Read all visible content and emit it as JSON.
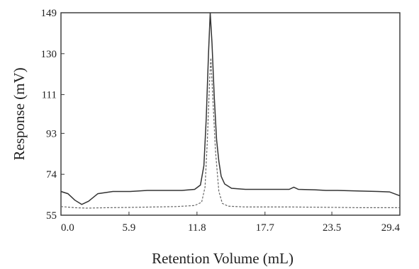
{
  "chart_data": {
    "type": "line",
    "title": "",
    "xlabel": "Retention Volume (mL)",
    "ylabel": "Response (mV)",
    "xlim": [
      0.0,
      29.4
    ],
    "ylim": [
      55,
      149
    ],
    "x_ticks": [
      "0.0",
      "5.9",
      "11.8",
      "17.7",
      "23.5",
      "29.4"
    ],
    "y_ticks": [
      "55",
      "74",
      "93",
      "111",
      "130",
      "149"
    ],
    "grid": false,
    "legend": "none",
    "series": [
      {
        "style": "solid",
        "points": [
          [
            0.0,
            66
          ],
          [
            0.6,
            65
          ],
          [
            1.2,
            62
          ],
          [
            1.8,
            60
          ],
          [
            2.4,
            61.5
          ],
          [
            3.2,
            65
          ],
          [
            4.5,
            66
          ],
          [
            6.0,
            66
          ],
          [
            7.5,
            66.5
          ],
          [
            9.0,
            66.5
          ],
          [
            10.5,
            66.5
          ],
          [
            11.6,
            67
          ],
          [
            12.1,
            69
          ],
          [
            12.4,
            78
          ],
          [
            12.6,
            100
          ],
          [
            12.8,
            130
          ],
          [
            12.95,
            149
          ],
          [
            13.1,
            135
          ],
          [
            13.3,
            110
          ],
          [
            13.5,
            90
          ],
          [
            13.7,
            80
          ],
          [
            13.9,
            73
          ],
          [
            14.2,
            69.5
          ],
          [
            14.8,
            67.5
          ],
          [
            16.0,
            67
          ],
          [
            18.0,
            67
          ],
          [
            19.8,
            67
          ],
          [
            20.2,
            68
          ],
          [
            20.6,
            67
          ],
          [
            22.0,
            66.8
          ],
          [
            23.0,
            66.5
          ],
          [
            24.0,
            66.5
          ],
          [
            26.0,
            66.2
          ],
          [
            27.5,
            66
          ],
          [
            28.5,
            65.8
          ],
          [
            29.4,
            64
          ]
        ]
      },
      {
        "style": "dashed",
        "points": [
          [
            0.0,
            59
          ],
          [
            1.2,
            58.5
          ],
          [
            2.2,
            58.3
          ],
          [
            4.0,
            58.5
          ],
          [
            6.0,
            58.6
          ],
          [
            8.0,
            58.8
          ],
          [
            10.0,
            59
          ],
          [
            11.6,
            59.5
          ],
          [
            12.2,
            61
          ],
          [
            12.5,
            68
          ],
          [
            12.7,
            90
          ],
          [
            12.9,
            118
          ],
          [
            13.0,
            128
          ],
          [
            13.15,
            112
          ],
          [
            13.4,
            85
          ],
          [
            13.7,
            66
          ],
          [
            14.0,
            60.5
          ],
          [
            14.5,
            59.2
          ],
          [
            16.0,
            58.8
          ],
          [
            18.0,
            58.8
          ],
          [
            20.0,
            58.8
          ],
          [
            22.0,
            58.7
          ],
          [
            24.0,
            58.6
          ],
          [
            26.0,
            58.5
          ],
          [
            28.0,
            58.5
          ],
          [
            29.4,
            58.5
          ]
        ]
      }
    ]
  }
}
